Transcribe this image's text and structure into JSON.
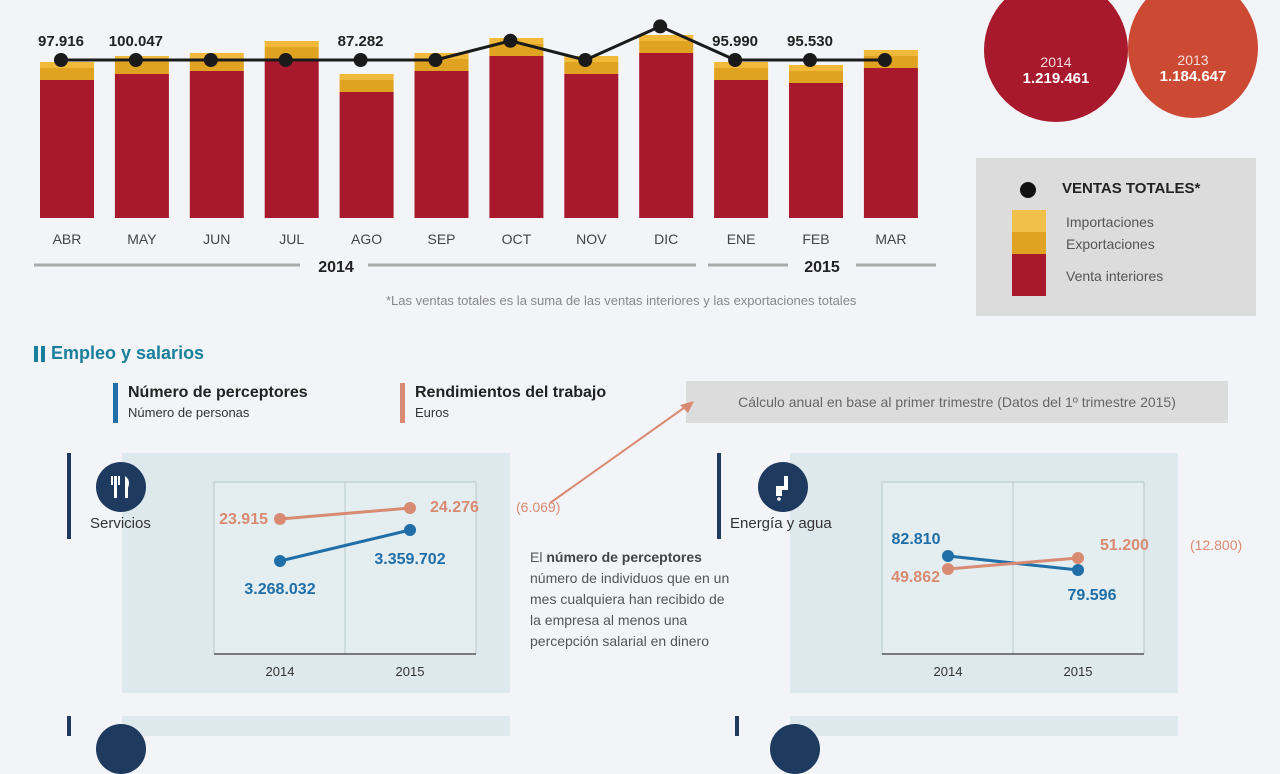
{
  "chart_data": [
    {
      "type": "bar",
      "categories": [
        "ABR",
        "MAY",
        "JUN",
        "JUL",
        "AGO",
        "SEP",
        "OCT",
        "NOV",
        "DIC",
        "ENE",
        "FEB",
        "MAR"
      ],
      "series": [
        {
          "name": "Venta interiores",
          "values": [
            46,
            48,
            49,
            53,
            42,
            49,
            54,
            48,
            55,
            46,
            45,
            50
          ]
        },
        {
          "name": "Exportaciones",
          "values": [
            50,
            52,
            53,
            57,
            46,
            53,
            58,
            52,
            59,
            50,
            49,
            54
          ]
        },
        {
          "name": "Importaciones",
          "values": [
            52,
            54,
            55,
            59,
            48,
            55,
            60,
            54,
            61,
            52,
            51,
            56
          ]
        }
      ],
      "line": {
        "name": "VENTAS TOTALES*",
        "values": [
          97.916,
          100.0,
          101.0,
          103.0,
          87.282,
          102.0,
          106.0,
          100.5,
          108.0,
          95.99,
          95.53,
          102.5
        ]
      },
      "labels": [
        "97.916",
        "100.047",
        "",
        "",
        "87.282",
        "",
        "",
        "",
        "",
        "95.990",
        "95.530",
        ""
      ],
      "year_groups": [
        {
          "label": "2014"
        },
        {
          "label": "2015"
        }
      ],
      "footnote": "*Las ventas totales es la suma de las ventas interiores y las exportaciones totales"
    },
    {
      "type": "line",
      "sector": "Servicios",
      "x": [
        "2014",
        "2015"
      ],
      "series": [
        {
          "name": "Número de perceptores",
          "values": [
            3268032,
            3359702
          ],
          "labels": [
            "3.268.032",
            "3.359.702"
          ]
        },
        {
          "name": "Rendimientos del trabajo",
          "values": [
            23915,
            24276
          ],
          "labels": [
            "23.915",
            "24.276"
          ]
        }
      ],
      "annotation": "(6.069)"
    },
    {
      "type": "line",
      "sector": "Energía y agua",
      "x": [
        "2014",
        "2015"
      ],
      "series": [
        {
          "name": "Número de perceptores",
          "values": [
            82810,
            79596
          ],
          "labels": [
            "82.810",
            "79.596"
          ]
        },
        {
          "name": "Rendimientos del trabajo",
          "values": [
            49862,
            51200
          ],
          "labels": [
            "49.862",
            "51.200"
          ]
        }
      ],
      "annotation": "(12.800)"
    }
  ],
  "bubbles": [
    {
      "year": "2014",
      "value": "1.219.461",
      "color": "#a8192e"
    },
    {
      "year": "2013",
      "value": "1.184.647",
      "color": "#cc4a34"
    }
  ],
  "legend": {
    "title": "VENTAS TOTALES*",
    "items": [
      "Importaciones",
      "Exportaciones",
      "Venta interiores"
    ]
  },
  "section": {
    "title": "Empleo y salarios",
    "legend_a_title": "Número de perceptores",
    "legend_a_sub": "Número de personas",
    "legend_b_title": "Rendimientos del trabajo",
    "legend_b_sub": "Euros",
    "note": "Cálculo anual en base al primer trimestre (Datos del 1º trimestre 2015)",
    "desc_bold": "número de perceptores",
    "desc_pre": "El ",
    "desc_post": " número de individuos que en un mes cualquiera han recibido de la empresa al menos una percepción salarial en dinero"
  },
  "colors": {
    "interior": "#a8192e",
    "export": "#e0a321",
    "import": "#f0b93a",
    "total": "#1a1a1a",
    "perceptores": "#1f6ea8",
    "rendimientos": "#d98a72",
    "panel": "#dde9ec",
    "icon": "#1e3a5f"
  }
}
